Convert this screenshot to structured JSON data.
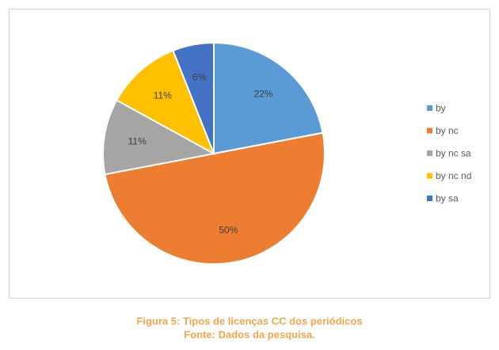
{
  "chart_data": {
    "type": "pie",
    "title": "",
    "categories": [
      "by",
      "by nc",
      "by nc sa",
      "by nc nd",
      "by sa"
    ],
    "values": [
      22,
      50,
      11,
      11,
      6
    ],
    "value_labels": [
      "22%",
      "50%",
      "11%",
      "11%",
      "6%"
    ],
    "colors": [
      "#5b9bd5",
      "#ed7d31",
      "#a5a5a5",
      "#ffc000",
      "#4472c4"
    ],
    "start_angle_deg": 0,
    "direction": "clockwise",
    "legend": {
      "position": "right",
      "entries": [
        "by",
        "by nc",
        "by nc sa",
        "by nc nd",
        "by sa"
      ]
    }
  },
  "caption": {
    "line1": "Figura 5: Tipos de licenças CC dos periódicos",
    "line2": "Fonte: Dados da pesquisa."
  }
}
